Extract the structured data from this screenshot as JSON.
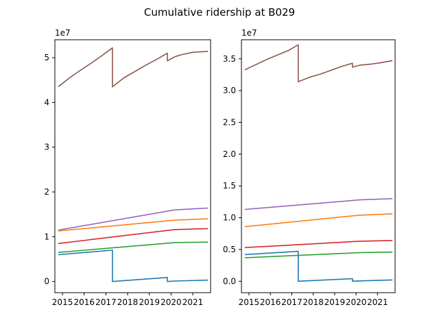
{
  "chart_data": {
    "title": "Cumulative ridership at B029",
    "type": "line",
    "xlim": [
      2014.65,
      2021.82
    ],
    "xticks": [
      2015,
      2016,
      2017,
      2018,
      2019,
      2020,
      2021
    ],
    "xtick_labels": [
      "2015",
      "2016",
      "2017",
      "2018",
      "2019",
      "2020",
      "2021"
    ],
    "colors": [
      "#1f77b4",
      "#ff7f0e",
      "#2ca02c",
      "#d62728",
      "#9467bd",
      "#8c564b"
    ],
    "panels": [
      {
        "offset_label": "1e7",
        "ylim": [
          -0.25,
          5.4
        ],
        "yticks": [
          0,
          1,
          2,
          3,
          4,
          5
        ],
        "ytick_labels": [
          "0",
          "1",
          "2",
          "3",
          "4",
          "5"
        ],
        "series": [
          {
            "x": [
              2014.83,
              2017.3,
              2017.3,
              2019.83,
              2019.83,
              2020.17,
              2021.67
            ],
            "y": [
              0.6,
              0.7,
              0.0,
              0.09,
              0.0,
              0.01,
              0.03
            ]
          },
          {
            "x": [
              2014.83,
              2020.17,
              2021.67
            ],
            "y": [
              1.13,
              1.37,
              1.4
            ]
          },
          {
            "x": [
              2014.83,
              2020.17,
              2021.67
            ],
            "y": [
              0.65,
              0.87,
              0.88
            ]
          },
          {
            "x": [
              2014.83,
              2020.17,
              2021.67
            ],
            "y": [
              0.85,
              1.16,
              1.18
            ]
          },
          {
            "x": [
              2014.83,
              2020.17,
              2021.67
            ],
            "y": [
              1.15,
              1.6,
              1.64
            ]
          },
          {
            "x": [
              2014.83,
              2015.33,
              2015.83,
              2016.33,
              2016.83,
              2017.3,
              2017.3,
              2017.83,
              2018.33,
              2018.83,
              2019.33,
              2019.83,
              2019.83,
              2020.17,
              2020.5,
              2021.0,
              2021.67
            ],
            "y": [
              4.36,
              4.55,
              4.72,
              4.88,
              5.05,
              5.22,
              4.35,
              4.55,
              4.69,
              4.83,
              4.96,
              5.1,
              4.93,
              5.02,
              5.07,
              5.12,
              5.14
            ]
          }
        ]
      },
      {
        "offset_label": "1e7",
        "ylim": [
          -0.18,
          3.8
        ],
        "yticks": [
          0.0,
          0.5,
          1.0,
          1.5,
          2.0,
          2.5,
          3.0,
          3.5
        ],
        "ytick_labels": [
          "0.0",
          "0.5",
          "1.0",
          "1.5",
          "2.0",
          "2.5",
          "3.0",
          "3.5"
        ],
        "series": [
          {
            "x": [
              2014.83,
              2017.3,
              2017.3,
              2019.83,
              2019.83,
              2020.17,
              2021.67
            ],
            "y": [
              0.42,
              0.47,
              0.0,
              0.04,
              0.0,
              0.005,
              0.02
            ]
          },
          {
            "x": [
              2014.83,
              2020.17,
              2021.67
            ],
            "y": [
              0.86,
              1.04,
              1.06
            ]
          },
          {
            "x": [
              2014.83,
              2020.17,
              2021.67
            ],
            "y": [
              0.37,
              0.45,
              0.46
            ]
          },
          {
            "x": [
              2014.83,
              2020.17,
              2021.67
            ],
            "y": [
              0.53,
              0.63,
              0.64
            ]
          },
          {
            "x": [
              2014.83,
              2020.17,
              2021.67
            ],
            "y": [
              1.13,
              1.28,
              1.3
            ]
          },
          {
            "x": [
              2014.83,
              2015.33,
              2015.83,
              2016.33,
              2016.83,
              2017.3,
              2017.3,
              2017.83,
              2018.33,
              2018.83,
              2019.33,
              2019.83,
              2019.83,
              2020.17,
              2020.5,
              2021.0,
              2021.67
            ],
            "y": [
              3.33,
              3.41,
              3.49,
              3.56,
              3.63,
              3.72,
              3.14,
              3.21,
              3.26,
              3.32,
              3.38,
              3.43,
              3.37,
              3.4,
              3.41,
              3.43,
              3.47
            ]
          }
        ]
      }
    ]
  }
}
